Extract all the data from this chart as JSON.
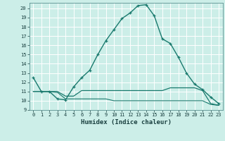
{
  "xlabel": "Humidex (Indice chaleur)",
  "bg_color": "#cceee8",
  "grid_color": "#ffffff",
  "line_color": "#1a7a6e",
  "xlim": [
    -0.5,
    23.5
  ],
  "ylim": [
    9,
    20.6
  ],
  "xticks": [
    0,
    1,
    2,
    3,
    4,
    5,
    6,
    7,
    8,
    9,
    10,
    11,
    12,
    13,
    14,
    15,
    16,
    17,
    18,
    19,
    20,
    21,
    22,
    23
  ],
  "yticks": [
    9,
    10,
    11,
    12,
    13,
    14,
    15,
    16,
    17,
    18,
    19,
    20
  ],
  "series1_x": [
    0,
    1,
    2,
    3,
    4,
    5,
    6,
    7,
    8,
    9,
    10,
    11,
    12,
    13,
    14,
    15,
    16,
    17,
    18,
    19,
    20,
    21,
    22,
    23
  ],
  "series1_y": [
    12.5,
    11.0,
    11.0,
    10.2,
    10.1,
    11.5,
    12.5,
    13.3,
    15.0,
    16.5,
    17.7,
    18.9,
    19.5,
    20.3,
    20.4,
    19.2,
    16.7,
    16.2,
    14.7,
    13.0,
    11.8,
    11.2,
    10.4,
    9.7
  ],
  "series2_x": [
    0,
    1,
    2,
    3,
    4,
    5,
    6,
    7,
    8,
    9,
    10,
    11,
    12,
    13,
    14,
    15,
    16,
    17,
    18,
    19,
    20,
    21,
    22,
    23
  ],
  "series2_y": [
    11.0,
    11.0,
    11.0,
    11.0,
    10.5,
    10.5,
    11.1,
    11.1,
    11.1,
    11.1,
    11.1,
    11.1,
    11.1,
    11.1,
    11.1,
    11.1,
    11.1,
    11.4,
    11.4,
    11.4,
    11.4,
    11.1,
    9.7,
    9.5
  ],
  "series3_x": [
    0,
    1,
    2,
    3,
    4,
    5,
    6,
    7,
    8,
    9,
    10,
    11,
    12,
    13,
    14,
    15,
    16,
    17,
    18,
    19,
    20,
    21,
    22,
    23
  ],
  "series3_y": [
    11.0,
    11.0,
    11.0,
    10.9,
    10.2,
    10.2,
    10.2,
    10.2,
    10.2,
    10.2,
    10.0,
    10.0,
    10.0,
    10.0,
    10.0,
    10.0,
    10.0,
    10.0,
    10.0,
    10.0,
    10.0,
    10.0,
    9.6,
    9.5
  ]
}
